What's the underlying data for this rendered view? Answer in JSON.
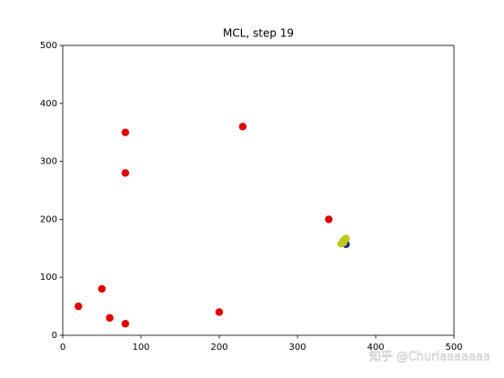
{
  "chart_data": {
    "type": "scatter",
    "title": "MCL, step 19",
    "xlim": [
      0,
      500
    ],
    "ylim": [
      0,
      500
    ],
    "xticks": [
      0,
      100,
      200,
      300,
      400,
      500
    ],
    "yticks": [
      0,
      100,
      200,
      300,
      400,
      500
    ],
    "series": [
      {
        "color": "#e00000",
        "x": [
          80,
          80,
          230,
          340,
          20,
          50,
          60,
          80,
          200
        ],
        "values": [
          350,
          280,
          360,
          200,
          50,
          80,
          30,
          20,
          40
        ]
      },
      {
        "color": "#1c2a80",
        "x": [
          362
        ],
        "values": [
          157
        ]
      },
      {
        "color": "#bcc81e",
        "x": [
          356,
          358,
          360,
          362,
          359
        ],
        "values": [
          158,
          162,
          165,
          167,
          160
        ]
      }
    ],
    "annotation": "知乎 @Churlaaaaaaa"
  }
}
